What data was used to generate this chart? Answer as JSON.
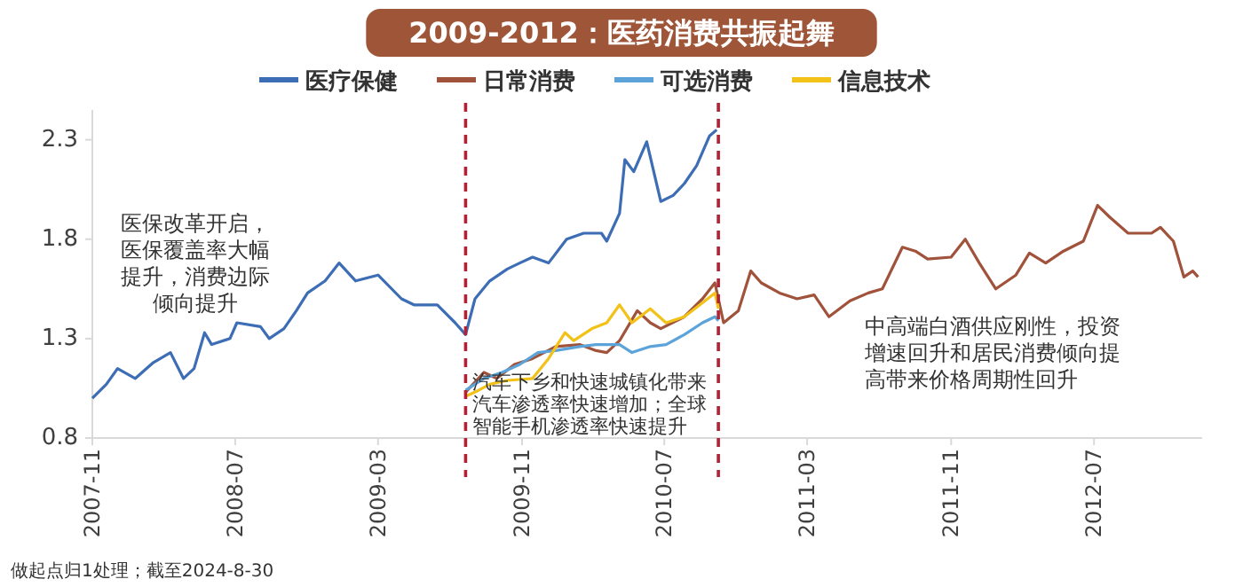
{
  "chart_data": {
    "type": "line",
    "title": "2009-2012：医药消费共振起舞",
    "legend": "top",
    "grid": false,
    "marker": "none",
    "line_style": "solid",
    "xlim": [
      "2007-11-01",
      "2013-01-01"
    ],
    "xticks": [
      "2007-11",
      "2008-07",
      "2009-03",
      "2009-11",
      "2010-07",
      "2011-03",
      "2011-11",
      "2012-07"
    ],
    "ylim": [
      0.8,
      2.45
    ],
    "yticks": [
      0.8,
      1.3,
      1.8,
      2.3
    ],
    "series": [
      {
        "name": "医疗保健",
        "color": "#3d6db5",
        "x": [
          "2007-11-01",
          "2007-11-25",
          "2007-12-14",
          "2008-01-13",
          "2008-02-13",
          "2008-03-13",
          "2008-04-04",
          "2008-04-22",
          "2008-05-10",
          "2008-05-22",
          "2008-06-22",
          "2008-07-04",
          "2008-08-13",
          "2008-08-28",
          "2008-09-22",
          "2008-10-13",
          "2008-11-01",
          "2008-12-01",
          "2008-12-25",
          "2009-01-22",
          "2009-03-01",
          "2009-04-10",
          "2009-05-01",
          "2009-06-10",
          "2009-07-10",
          "2009-07-28",
          "2009-08-13",
          "2009-09-07",
          "2009-10-07",
          "2009-10-28",
          "2009-11-19",
          "2009-12-16",
          "2010-01-16",
          "2010-02-14",
          "2010-03-16",
          "2010-03-25",
          "2010-04-16",
          "2010-04-25",
          "2010-05-10",
          "2010-06-01",
          "2010-06-25",
          "2010-07-16",
          "2010-08-04",
          "2010-08-25",
          "2010-09-16",
          "2010-09-28"
        ],
        "values": [
          1.0,
          1.07,
          1.15,
          1.1,
          1.18,
          1.23,
          1.1,
          1.15,
          1.33,
          1.27,
          1.3,
          1.38,
          1.36,
          1.3,
          1.35,
          1.44,
          1.53,
          1.59,
          1.68,
          1.59,
          1.62,
          1.5,
          1.47,
          1.47,
          1.38,
          1.32,
          1.5,
          1.59,
          1.65,
          1.68,
          1.71,
          1.68,
          1.8,
          1.83,
          1.83,
          1.79,
          1.93,
          2.2,
          2.14,
          2.29,
          1.99,
          2.02,
          2.08,
          2.17,
          2.32,
          2.35
        ]
      },
      {
        "name": "日常消费",
        "color": "#a0523a",
        "x": [
          "2009-07-28",
          "2009-08-28",
          "2009-09-19",
          "2009-10-19",
          "2009-11-19",
          "2009-12-28",
          "2010-02-07",
          "2010-03-07",
          "2010-03-25",
          "2010-04-16",
          "2010-05-16",
          "2010-06-07",
          "2010-06-25",
          "2010-08-04",
          "2010-09-04",
          "2010-09-25",
          "2010-10-10",
          "2010-11-04",
          "2010-11-25",
          "2010-12-13",
          "2011-01-13",
          "2011-02-12",
          "2011-03-13",
          "2011-04-07",
          "2011-05-13",
          "2011-06-13",
          "2011-07-07",
          "2011-08-10",
          "2011-09-01",
          "2011-09-22",
          "2011-11-01",
          "2011-11-25",
          "2011-12-19",
          "2012-01-16",
          "2012-02-19",
          "2012-03-13",
          "2012-04-10",
          "2012-05-10",
          "2012-06-13",
          "2012-07-07",
          "2012-07-28",
          "2012-08-28",
          "2012-10-07",
          "2012-10-22",
          "2012-11-13",
          "2012-12-01",
          "2012-12-16",
          "2012-12-25"
        ],
        "values": [
          1.03,
          1.13,
          1.1,
          1.17,
          1.2,
          1.26,
          1.27,
          1.24,
          1.23,
          1.29,
          1.44,
          1.38,
          1.35,
          1.41,
          1.5,
          1.58,
          1.38,
          1.44,
          1.64,
          1.58,
          1.53,
          1.5,
          1.52,
          1.41,
          1.49,
          1.53,
          1.55,
          1.76,
          1.74,
          1.7,
          1.71,
          1.8,
          1.68,
          1.55,
          1.62,
          1.73,
          1.68,
          1.74,
          1.79,
          1.97,
          1.91,
          1.83,
          1.83,
          1.86,
          1.79,
          1.61,
          1.64,
          1.61
        ]
      },
      {
        "name": "可选消费",
        "color": "#5ba3d9",
        "x": [
          "2009-07-28",
          "2009-08-28",
          "2009-09-28",
          "2009-10-28",
          "2009-11-28",
          "2009-12-28",
          "2010-02-07",
          "2010-03-07",
          "2010-04-16",
          "2010-05-07",
          "2010-06-07",
          "2010-07-04",
          "2010-08-04",
          "2010-09-04",
          "2010-09-25",
          "2010-10-01"
        ],
        "values": [
          1.04,
          1.1,
          1.13,
          1.17,
          1.23,
          1.24,
          1.26,
          1.27,
          1.27,
          1.23,
          1.26,
          1.27,
          1.32,
          1.38,
          1.41,
          1.39
        ]
      },
      {
        "name": "信息技术",
        "color": "#f2c219",
        "x": [
          "2009-07-28",
          "2009-08-19",
          "2009-09-07",
          "2009-10-07",
          "2009-11-19",
          "2009-12-16",
          "2010-01-13",
          "2010-01-28",
          "2010-02-28",
          "2010-03-25",
          "2010-04-16",
          "2010-05-07",
          "2010-06-07",
          "2010-07-04",
          "2010-08-04",
          "2010-09-04",
          "2010-09-25",
          "2010-10-01"
        ],
        "values": [
          1.01,
          1.04,
          1.07,
          1.09,
          1.1,
          1.2,
          1.33,
          1.29,
          1.35,
          1.38,
          1.47,
          1.38,
          1.45,
          1.38,
          1.41,
          1.48,
          1.53,
          1.45
        ]
      }
    ],
    "ref_lines": [
      {
        "axis": "x",
        "value": "2009-07-28",
        "color": "#b22234",
        "line_style": "dashed"
      },
      {
        "axis": "x",
        "value": "2010-10-01",
        "color": "#b22234",
        "line_style": "dashed"
      }
    ],
    "annotations": [
      "医保改革开启，医保覆盖率大幅提升，消费边际倾向提升",
      "汽车下乡和快速城镇化带来汽车渗透率快速增加；全球智能手机渗透率快速提升",
      "中高端白酒供应刚性，投资增速回升和居民消费倾向提高带来价格周期性回升",
      "做起点归1处理；截至2024-8-30"
    ]
  }
}
